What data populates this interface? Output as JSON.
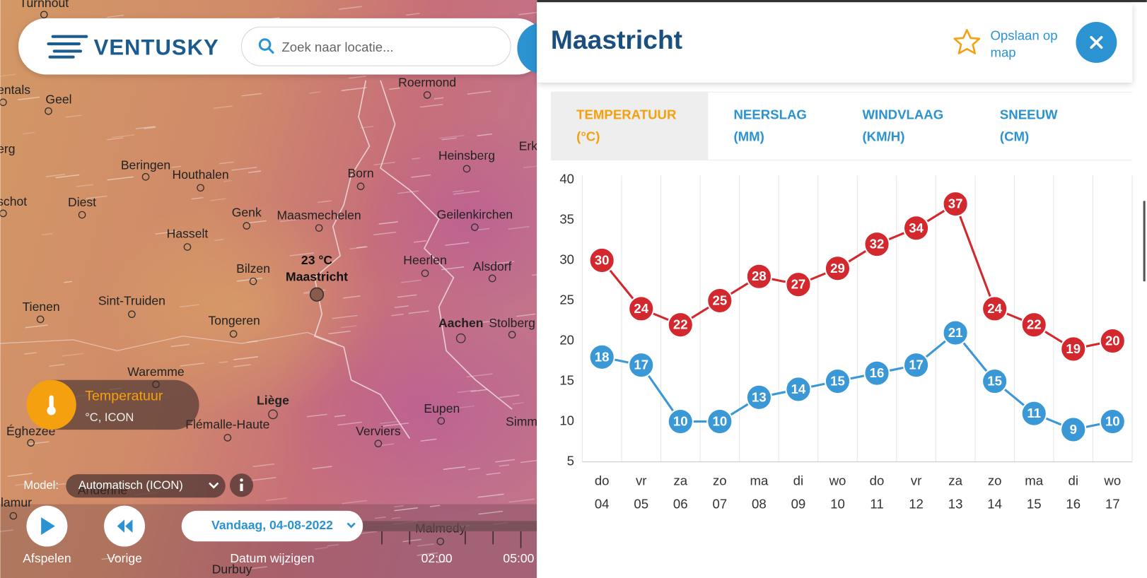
{
  "header": {
    "logo": "VENTUSKY",
    "search_placeholder": "Zoek naar locatie..."
  },
  "map": {
    "cities": [
      "Turnhout",
      "entals",
      "Geel",
      "erg",
      "schot",
      "Beringen",
      "Houthalen",
      "Diest",
      "Genk",
      "Maasmechelen",
      "Hasselt",
      "Bilzen",
      "Tienen",
      "Sint-Truiden",
      "Tongeren",
      "Waremme",
      "Liège",
      "Flémalle-Haute",
      "Éghezee",
      "Roermond",
      "Born",
      "Heinsberg",
      "Erk",
      "Geilenkirchen",
      "Heerlen",
      "Alsdorf",
      "Aachen",
      "Stolberg",
      "Eupen",
      "Verviers",
      "Simm",
      "Malmedy",
      "Durbuy",
      "lamur",
      "Andenne"
    ],
    "marker": {
      "temperature": "23 °C",
      "name": "Maastricht"
    }
  },
  "layer": {
    "name": "Temperatuur",
    "detail": "°C, ICON"
  },
  "model": {
    "label": "Model:",
    "value": "Automatisch (ICON)"
  },
  "controls": {
    "play": "Afspelen",
    "previous": "Vorige",
    "date": "Vandaag, 04-08-2022",
    "change_date": "Datum wijzigen",
    "times": [
      "02:00",
      "05:00"
    ]
  },
  "panel": {
    "title": "Maastricht",
    "save": [
      "Opslaan op",
      "map"
    ],
    "tabs": [
      [
        "TEMPERATUUR",
        "(°C)"
      ],
      [
        "NEERSLAG",
        "(MM)"
      ],
      [
        "WINDVLAAG",
        "(KM/H)"
      ],
      [
        "SNEEUW",
        "(CM)"
      ]
    ]
  },
  "chart_data": {
    "type": "line",
    "categories": [
      "do",
      "vr",
      "za",
      "zo",
      "ma",
      "di",
      "wo",
      "do",
      "vr",
      "za",
      "zo",
      "ma",
      "di",
      "wo"
    ],
    "dates": [
      "04",
      "05",
      "06",
      "07",
      "08",
      "09",
      "10",
      "11",
      "12",
      "13",
      "14",
      "15",
      "16",
      "17"
    ],
    "series": [
      {
        "color": "#d4282f",
        "values": [
          30,
          24,
          22,
          25,
          28,
          27,
          29,
          32,
          34,
          37,
          24,
          22,
          19,
          20
        ]
      },
      {
        "color": "#3a98d6",
        "values": [
          18,
          17,
          10,
          10,
          13,
          14,
          15,
          16,
          17,
          21,
          15,
          11,
          9,
          10
        ]
      }
    ],
    "ylim": [
      5,
      40
    ],
    "yticks": [
      5,
      10,
      15,
      20,
      25,
      30,
      35,
      40
    ],
    "grid": true
  }
}
